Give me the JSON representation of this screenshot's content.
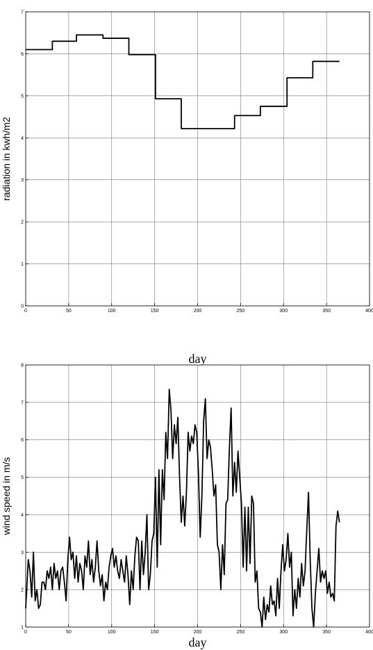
{
  "chart_data": [
    {
      "type": "line",
      "xlabel": "day",
      "ylabel": "radiation in kwh/m2",
      "grid": true,
      "color": "#000000",
      "xlim": [
        0,
        400
      ],
      "xticks": [
        0,
        50,
        100,
        150,
        200,
        250,
        300,
        350,
        400
      ],
      "ylim": [
        0,
        7
      ],
      "yticks": [
        0,
        1,
        2,
        3,
        4,
        5,
        6,
        7
      ],
      "x": [
        0,
        31,
        31,
        59,
        59,
        90,
        90,
        120,
        120,
        151,
        151,
        181,
        181,
        243,
        243,
        273,
        273,
        304,
        304,
        334,
        334,
        365
      ],
      "values": [
        6.1,
        6.1,
        6.3,
        6.3,
        6.45,
        6.45,
        6.37,
        6.37,
        5.98,
        5.98,
        4.93,
        4.93,
        4.22,
        4.22,
        4.53,
        4.53,
        4.75,
        4.75,
        5.43,
        5.43,
        5.82,
        5.82
      ]
    },
    {
      "type": "line",
      "xlabel": "day",
      "ylabel": "wind speed in m/s",
      "grid": true,
      "color": "#000000",
      "xlim": [
        0,
        400
      ],
      "xticks": [
        0,
        50,
        100,
        150,
        200,
        250,
        300,
        350,
        400
      ],
      "ylim": [
        1,
        8
      ],
      "yticks": [
        1,
        2,
        3,
        4,
        5,
        6,
        7,
        8
      ],
      "x": [
        0,
        3,
        5,
        7,
        9,
        11,
        13,
        15,
        17,
        19,
        21,
        23,
        25,
        27,
        29,
        31,
        33,
        35,
        37,
        39,
        41,
        43,
        45,
        47,
        49,
        51,
        53,
        55,
        57,
        59,
        61,
        63,
        65,
        67,
        69,
        71,
        73,
        75,
        77,
        79,
        81,
        83,
        85,
        87,
        89,
        91,
        93,
        95,
        97,
        99,
        101,
        103,
        105,
        107,
        109,
        111,
        113,
        115,
        117,
        119,
        121,
        123,
        125,
        127,
        129,
        131,
        133,
        135,
        137,
        139,
        141,
        143,
        145,
        147,
        149,
        151,
        153,
        155,
        157,
        159,
        161,
        163,
        165,
        167,
        169,
        171,
        173,
        175,
        177,
        179,
        181,
        183,
        185,
        187,
        189,
        191,
        193,
        195,
        197,
        199,
        201,
        203,
        205,
        207,
        209,
        211,
        213,
        215,
        217,
        219,
        221,
        223,
        225,
        227,
        229,
        231,
        233,
        235,
        237,
        239,
        241,
        243,
        245,
        247,
        249,
        251,
        253,
        255,
        257,
        259,
        261,
        263,
        265,
        267,
        269,
        271,
        273,
        275,
        277,
        279,
        281,
        283,
        285,
        287,
        289,
        291,
        293,
        295,
        297,
        299,
        301,
        303,
        305,
        307,
        309,
        311,
        313,
        315,
        317,
        319,
        321,
        323,
        325,
        327,
        329,
        331,
        333,
        335,
        337,
        339,
        341,
        343,
        345,
        347,
        349,
        351,
        353,
        355,
        357,
        359,
        361,
        363,
        365
      ],
      "values": [
        1.5,
        2.8,
        2.5,
        1.8,
        3.0,
        1.7,
        2.0,
        1.5,
        1.6,
        2.2,
        2.2,
        2.0,
        2.5,
        2.3,
        2.6,
        2.0,
        2.7,
        2.3,
        2.5,
        2.0,
        2.5,
        2.6,
        2.2,
        1.7,
        2.8,
        3.4,
        2.8,
        3.0,
        2.3,
        2.9,
        2.2,
        2.7,
        2.5,
        2.0,
        2.9,
        2.6,
        3.3,
        2.4,
        2.8,
        2.2,
        2.6,
        3.3,
        2.5,
        2.1,
        2.4,
        1.7,
        2.2,
        2.0,
        2.6,
        2.9,
        3.1,
        2.6,
        2.9,
        2.5,
        2.3,
        2.8,
        2.5,
        2.2,
        2.9,
        2.4,
        1.6,
        2.5,
        2.0,
        2.9,
        3.4,
        3.3,
        2.0,
        3.3,
        2.4,
        3.0,
        4.0,
        2.0,
        2.4,
        3.3,
        3.5,
        5.0,
        2.6,
        5.2,
        3.2,
        5.2,
        4.4,
        6.2,
        5.5,
        7.35,
        6.8,
        5.5,
        6.4,
        5.9,
        6.6,
        5.0,
        3.8,
        4.5,
        3.7,
        4.6,
        6.2,
        5.7,
        6.1,
        5.9,
        6.4,
        6.2,
        5.1,
        3.4,
        4.5,
        6.5,
        7.1,
        5.5,
        6.0,
        5.8,
        5.2,
        4.5,
        4.8,
        3.2,
        3.0,
        2.0,
        3.2,
        2.4,
        4.3,
        4.4,
        5.8,
        6.85,
        4.5,
        5.4,
        4.6,
        5.7,
        5.0,
        4.3,
        2.6,
        4.2,
        2.5,
        4.2,
        2.7,
        4.5,
        4.3,
        2.2,
        2.5,
        1.5,
        1.4,
        1.0,
        1.8,
        1.2,
        1.6,
        1.4,
        2.1,
        1.6,
        1.7,
        1.3,
        2.3,
        1.5,
        2.5,
        3.2,
        2.5,
        2.8,
        3.5,
        2.6,
        3.0,
        1.3,
        2.0,
        1.5,
        2.3,
        1.8,
        2.7,
        2.1,
        2.5,
        3.6,
        4.6,
        2.8,
        1.5,
        1.0,
        1.9,
        2.5,
        3.1,
        2.2,
        2.5,
        2.3,
        2.5,
        1.9,
        2.2,
        1.8,
        1.9,
        1.7,
        3.7,
        4.1,
        3.8
      ]
    }
  ]
}
